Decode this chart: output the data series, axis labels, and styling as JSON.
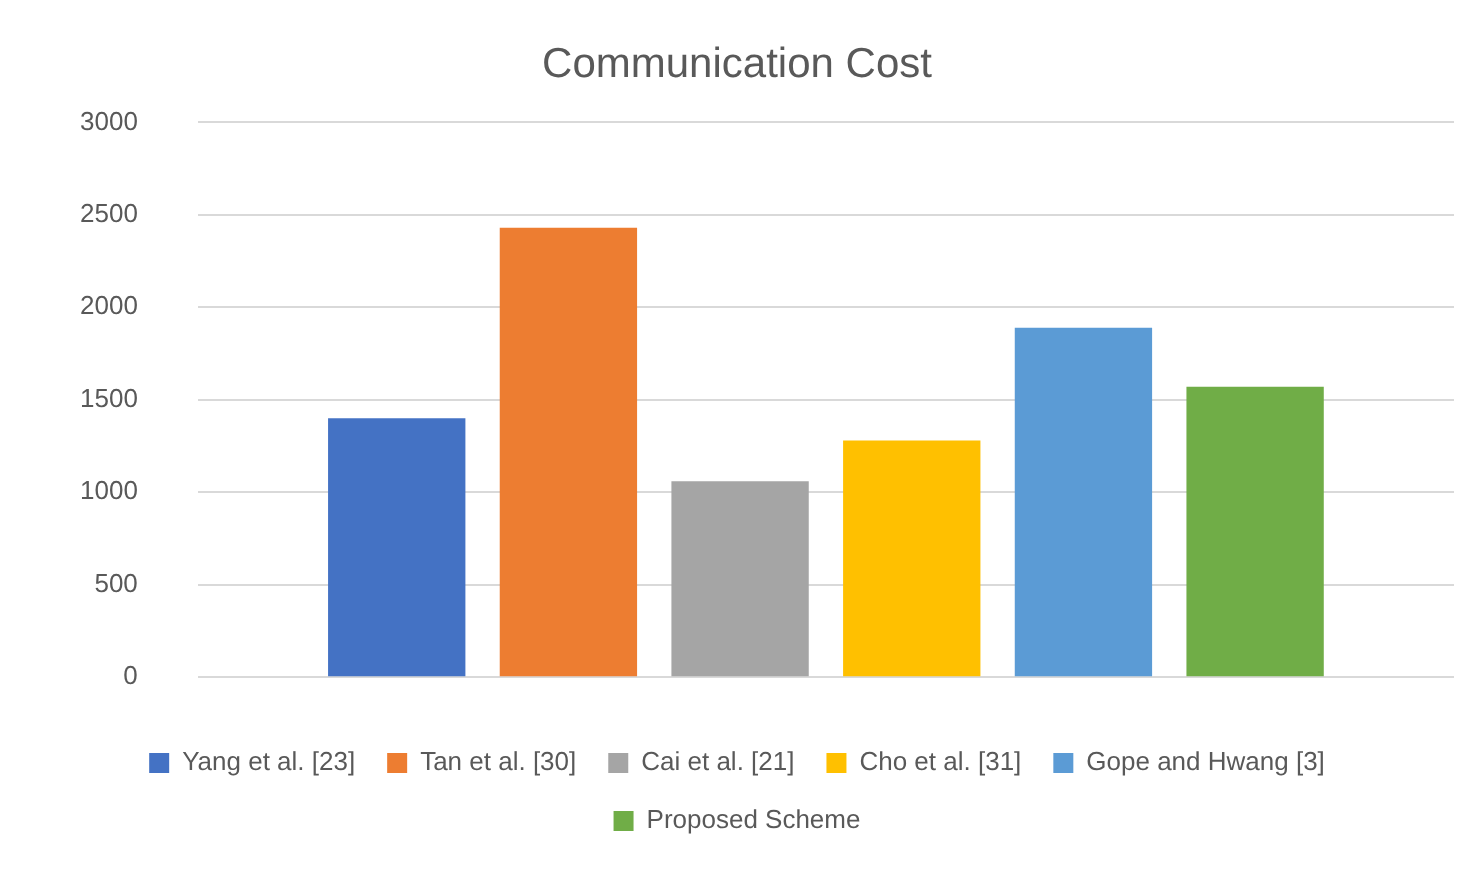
{
  "chart_data": {
    "type": "bar",
    "title": "Communication Cost",
    "categories": [
      null
    ],
    "series": [
      {
        "name": "Yang et al. [23]",
        "color": "#4472c4",
        "values": [
          1400
        ]
      },
      {
        "name": "Tan et al. [30]",
        "color": "#ed7d31",
        "values": [
          2430
        ]
      },
      {
        "name": "Cai et al. [21]",
        "color": "#a5a5a5",
        "values": [
          1060
        ]
      },
      {
        "name": "Cho et al. [31]",
        "color": "#ffc000",
        "values": [
          1280
        ]
      },
      {
        "name": "Gope and Hwang [3]",
        "color": "#5b9bd5",
        "values": [
          1890
        ]
      },
      {
        "name": "Proposed Scheme",
        "color": "#70ad47",
        "values": [
          1570
        ]
      }
    ],
    "ylim": [
      0,
      3000
    ],
    "yticks": [
      0,
      500,
      1000,
      1500,
      2000,
      2500,
      3000
    ],
    "grid": "y",
    "legend": "bottom"
  }
}
